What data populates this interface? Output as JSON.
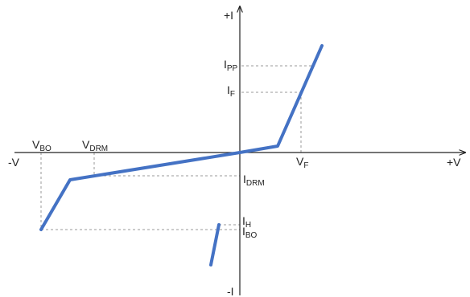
{
  "colors": {
    "curve": "#4472c4",
    "axis": "#222222",
    "guide": "#9a9a9a"
  },
  "axes": {
    "plus_i": {
      "main": "+I"
    },
    "minus_i": {
      "main": "-I"
    },
    "plus_v": {
      "main": "+V"
    },
    "minus_v": {
      "main": "-V"
    }
  },
  "labels": {
    "vbo": {
      "main": "V",
      "sub": "BO"
    },
    "vdrm": {
      "main": "V",
      "sub": "DRM"
    },
    "vf": {
      "main": "V",
      "sub": "F"
    },
    "ipp": {
      "main": "I",
      "sub": "PP"
    },
    "if": {
      "main": "I",
      "sub": "F"
    },
    "idrm": {
      "main": "I",
      "sub": "DRM"
    },
    "ih": {
      "main": "I",
      "sub": "H"
    },
    "ibo": {
      "main": "I",
      "sub": "BO"
    }
  }
}
